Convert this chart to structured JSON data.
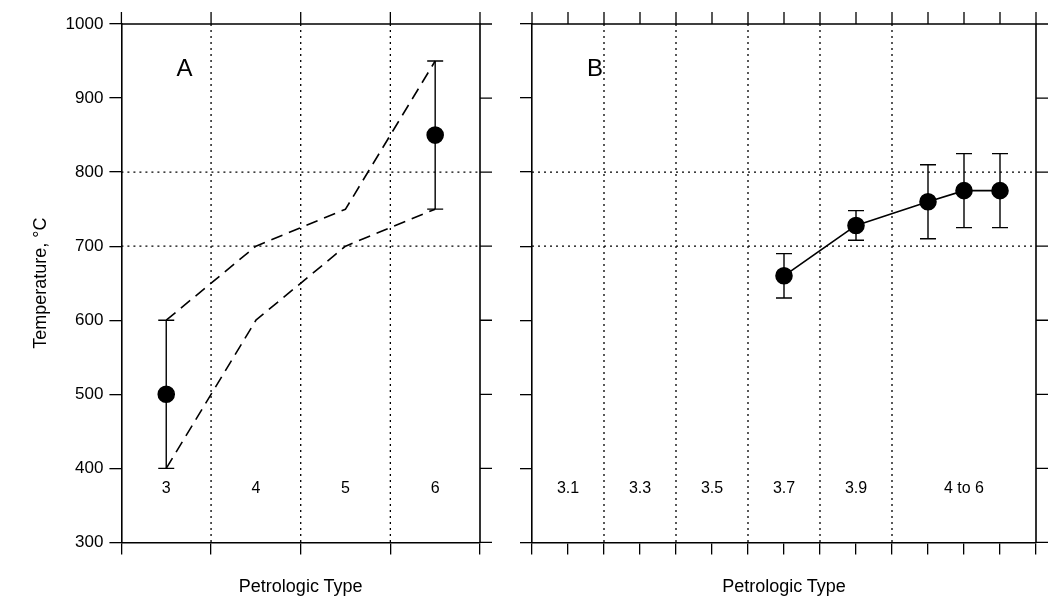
{
  "chart_data": [
    {
      "type": "line",
      "ylabel": "Temperature, °C",
      "xlabel": "Petrologic Type",
      "annotations": [
        "A"
      ],
      "categories": [
        "3",
        "4",
        "5",
        "6"
      ],
      "ylim": [
        300,
        1000
      ],
      "yticks": [
        300,
        400,
        500,
        600,
        700,
        800,
        900,
        1000
      ],
      "grid": "x",
      "legend": false,
      "ref_lines": [
        {
          "axis": "y",
          "value": 700,
          "line_style": "dotted"
        },
        {
          "axis": "y",
          "value": 800,
          "line_style": "dotted"
        }
      ],
      "series": [
        {
          "type": "line",
          "color": "#000000",
          "values": [
            600,
            700,
            750,
            950
          ],
          "marker": "none",
          "line_style": "dashed"
        },
        {
          "type": "line",
          "color": "#000000",
          "values": [
            400,
            600,
            700,
            750
          ],
          "marker": "none",
          "line_style": "dashed"
        },
        {
          "type": "scatter",
          "color": "#000000",
          "values": [
            500,
            null,
            null,
            850
          ],
          "errors": [
            100,
            null,
            null,
            100
          ],
          "marker": "circle"
        }
      ]
    },
    {
      "type": "line",
      "xlabel": "Petrologic Type",
      "annotations": [
        "B"
      ],
      "categories": [
        null,
        "3.1",
        null,
        "3.3",
        null,
        "3.5",
        null,
        "3.7",
        null,
        "3.9",
        null,
        null,
        "4 to 6",
        null,
        null
      ],
      "ylim": [
        300,
        1000
      ],
      "yticks": [
        300,
        400,
        500,
        600,
        700,
        800,
        900,
        1000
      ],
      "tick_labels": "x",
      "grid": "x",
      "legend": false,
      "ref_lines": [
        {
          "axis": "y",
          "value": 700,
          "line_style": "dotted"
        },
        {
          "axis": "y",
          "value": 800,
          "line_style": "dotted"
        }
      ],
      "series": [
        {
          "type": "line",
          "color": "#000000",
          "values": [
            null,
            null,
            null,
            null,
            null,
            null,
            null,
            660,
            null,
            728,
            null,
            760,
            775,
            775,
            null
          ],
          "errors": [
            null,
            null,
            null,
            null,
            null,
            null,
            null,
            30,
            null,
            20,
            null,
            50,
            50,
            50,
            null
          ],
          "marker": "circle",
          "line_style": "solid"
        }
      ]
    }
  ]
}
